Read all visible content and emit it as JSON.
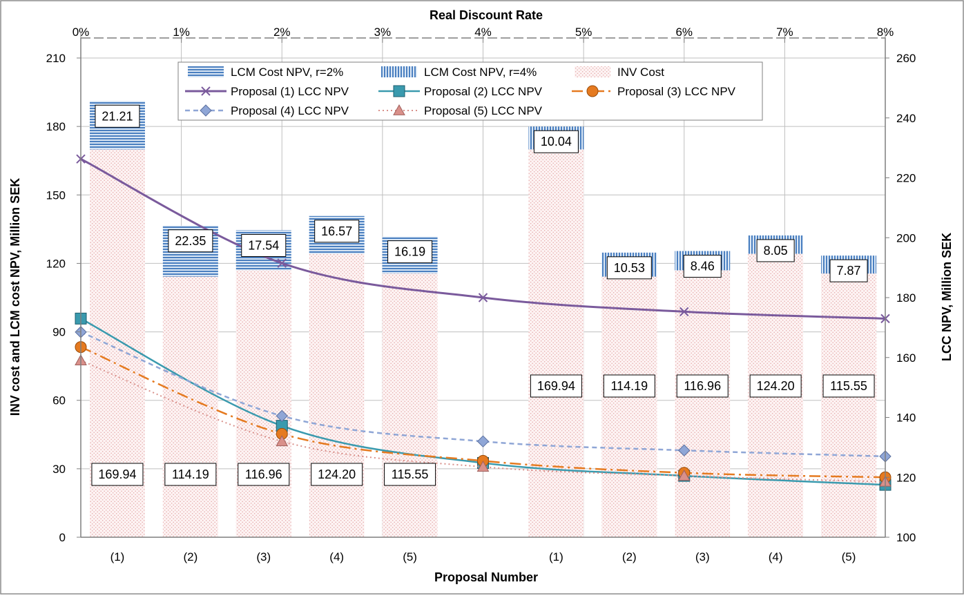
{
  "chart_data": {
    "type": "bar",
    "top_axis": {
      "title": "Real Discount Rate",
      "ticks": [
        "0%",
        "1%",
        "2%",
        "3%",
        "4%",
        "5%",
        "6%",
        "7%",
        "8%"
      ],
      "values": [
        0,
        1,
        2,
        3,
        4,
        5,
        6,
        7,
        8
      ],
      "range": [
        0,
        8
      ]
    },
    "left_axis": {
      "title": "INV cost and LCM cost NPV, Million SEK",
      "range": [
        0,
        210
      ],
      "ticks": [
        "0",
        "30",
        "60",
        "90",
        "120",
        "150",
        "180",
        "210"
      ],
      "values": [
        0,
        30,
        60,
        90,
        120,
        150,
        180,
        210
      ]
    },
    "right_axis": {
      "title": "LCC NPV, Million SEK",
      "range": [
        100,
        260
      ],
      "ticks": [
        "100",
        "120",
        "140",
        "160",
        "180",
        "200",
        "220",
        "240",
        "260"
      ],
      "values": [
        100,
        120,
        140,
        160,
        180,
        200,
        220,
        240,
        260
      ]
    },
    "bottom_axis": {
      "title": "Proposal  Number",
      "categories": [
        "(1)",
        "(2)",
        "(3)",
        "(4)",
        "(5)",
        "",
        "(1)",
        "(2)",
        "(3)",
        "(4)",
        "(5)"
      ]
    },
    "bar_groups": [
      {
        "lcm_series": "LCM Cost NPV, r=2%",
        "inv": [
          169.94,
          114.19,
          116.96,
          124.2,
          115.55
        ],
        "inv_labels": [
          "169.94",
          "114.19",
          "116.96",
          "124.20",
          "115.55"
        ],
        "lcm": [
          21.21,
          22.35,
          17.54,
          16.57,
          16.19
        ],
        "lcm_labels": [
          "21.21",
          "22.35",
          "17.54",
          "16.57",
          "16.19"
        ]
      },
      {
        "lcm_series": "LCM Cost NPV, r=4%",
        "inv": [
          169.94,
          114.19,
          116.96,
          124.2,
          115.55
        ],
        "inv_labels": [
          "169.94",
          "114.19",
          "116.96",
          "124.20",
          "115.55"
        ],
        "lcm": [
          10.04,
          10.53,
          8.46,
          8.05,
          7.87
        ],
        "lcm_labels": [
          "10.04",
          "10.53",
          "8.46",
          "8.05",
          "7.87"
        ]
      }
    ],
    "line_series": [
      {
        "name": "Proposal (1) LCC NPV",
        "color": "#7a5a9c",
        "marker": "x",
        "dash": "",
        "width": 3,
        "x": [
          0,
          2,
          4,
          6,
          8
        ],
        "y": [
          226.3,
          191.5,
          180.0,
          175.3,
          173.0
        ]
      },
      {
        "name": "Proposal (2) LCC NPV",
        "color": "#3a9aae",
        "marker": "square",
        "dash": "",
        "width": 2.5,
        "x": [
          0,
          2,
          4,
          6,
          8
        ],
        "y": [
          173.0,
          137.2,
          124.8,
          120.5,
          117.5
        ]
      },
      {
        "name": "Proposal (3) LCC NPV",
        "color": "#e57a20",
        "marker": "circle",
        "dash": "16,6,3,6",
        "width": 2.5,
        "x": [
          0,
          2,
          4,
          6,
          8
        ],
        "y": [
          163.5,
          134.5,
          125.5,
          121.5,
          120.0
        ]
      },
      {
        "name": "Proposal (4) LCC NPV",
        "color": "#8fa6d6",
        "marker": "diamond",
        "dash": "7,5",
        "width": 2.5,
        "x": [
          0,
          2,
          4,
          6,
          8
        ],
        "y": [
          168.5,
          140.5,
          132.0,
          129.0,
          127.0
        ]
      },
      {
        "name": "Proposal (5) LCC NPV",
        "color": "#d9908a",
        "marker": "triangle",
        "dash": "2,4",
        "width": 2,
        "x": [
          0,
          2,
          4,
          6,
          8
        ],
        "y": [
          159.0,
          132.0,
          123.5,
          120.5,
          118.5
        ]
      }
    ],
    "legend": {
      "position": "top",
      "entries": [
        "LCM Cost NPV, r=2%",
        "LCM Cost NPV, r=4%",
        "INV Cost",
        "Proposal (1) LCC NPV",
        "Proposal (2) LCC NPV",
        "Proposal (3) LCC NPV",
        "Proposal (4) LCC NPV",
        "Proposal (5) LCC NPV"
      ]
    },
    "grid": true
  }
}
